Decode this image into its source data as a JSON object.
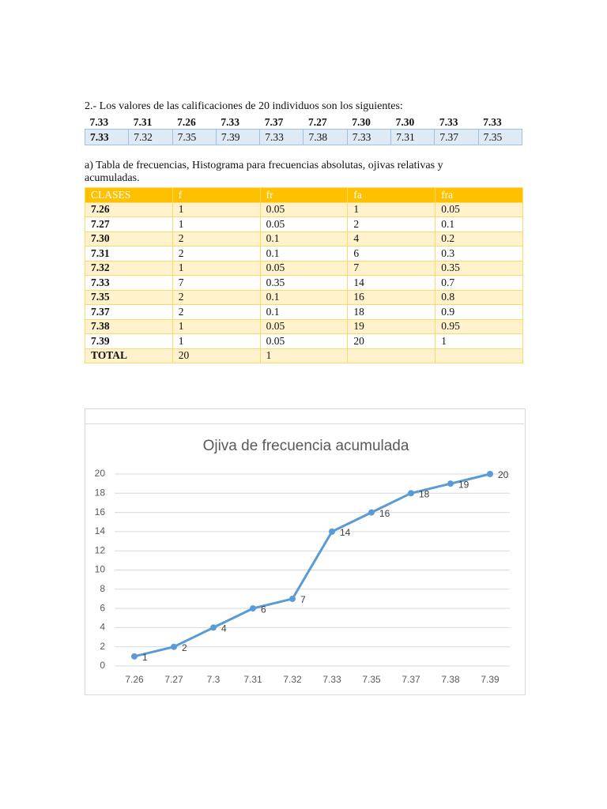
{
  "problem": {
    "statement": "2.-  Los valores de las calificaciones de 20 individuos son los siguientes:",
    "rows": [
      [
        "7.33",
        "7.31",
        "7.26",
        "7.33",
        "7.37",
        "7.27",
        "7.30",
        "7.30",
        "7.33",
        "7.33"
      ],
      [
        "7.33",
        "7.32",
        "7.35",
        "7.39",
        "7.33",
        "7.38",
        "7.33",
        "7.31",
        "7.37",
        "7.35"
      ]
    ]
  },
  "part_a": "a)  Tabla de frecuencias, Histograma para frecuencias absolutas, ojivas relativas y acumuladas.",
  "table": {
    "header": [
      "CLASES",
      "f",
      "fr",
      "fa",
      "fra"
    ],
    "rows": [
      [
        "7.26",
        "1",
        "0.05",
        "1",
        "0.05"
      ],
      [
        "7.27",
        "1",
        "0.05",
        "2",
        "0.1"
      ],
      [
        "7.30",
        "2",
        "0.1",
        "4",
        "0.2"
      ],
      [
        "7.31",
        "2",
        "0.1",
        "6",
        "0.3"
      ],
      [
        "7.32",
        "1",
        "0.05",
        "7",
        "0.35"
      ],
      [
        "7.33",
        "7",
        "0.35",
        "14",
        "0.7"
      ],
      [
        "7.35",
        "2",
        "0.1",
        "16",
        "0.8"
      ],
      [
        "7.37",
        "2",
        "0.1",
        "18",
        "0.9"
      ],
      [
        "7.38",
        "1",
        "0.05",
        "19",
        "0.95"
      ],
      [
        "7.39",
        "1",
        "0.05",
        "20",
        "1"
      ]
    ],
    "total": [
      "TOTAL",
      "20",
      "1"
    ]
  },
  "chart_data": {
    "type": "line",
    "title": "Ojiva de frecuencia acumulada",
    "categories": [
      "7.26",
      "7.27",
      "7.3",
      "7.31",
      "7.32",
      "7.33",
      "7.35",
      "7.37",
      "7.38",
      "7.39"
    ],
    "values": [
      1,
      2,
      4,
      6,
      7,
      14,
      16,
      18,
      19,
      20
    ],
    "color": "#5b9bd5",
    "ylim": [
      0,
      20
    ],
    "yticks": [
      0,
      2,
      4,
      6,
      8,
      10,
      12,
      14,
      16,
      18,
      20
    ],
    "grid": true,
    "data_labels": true
  }
}
